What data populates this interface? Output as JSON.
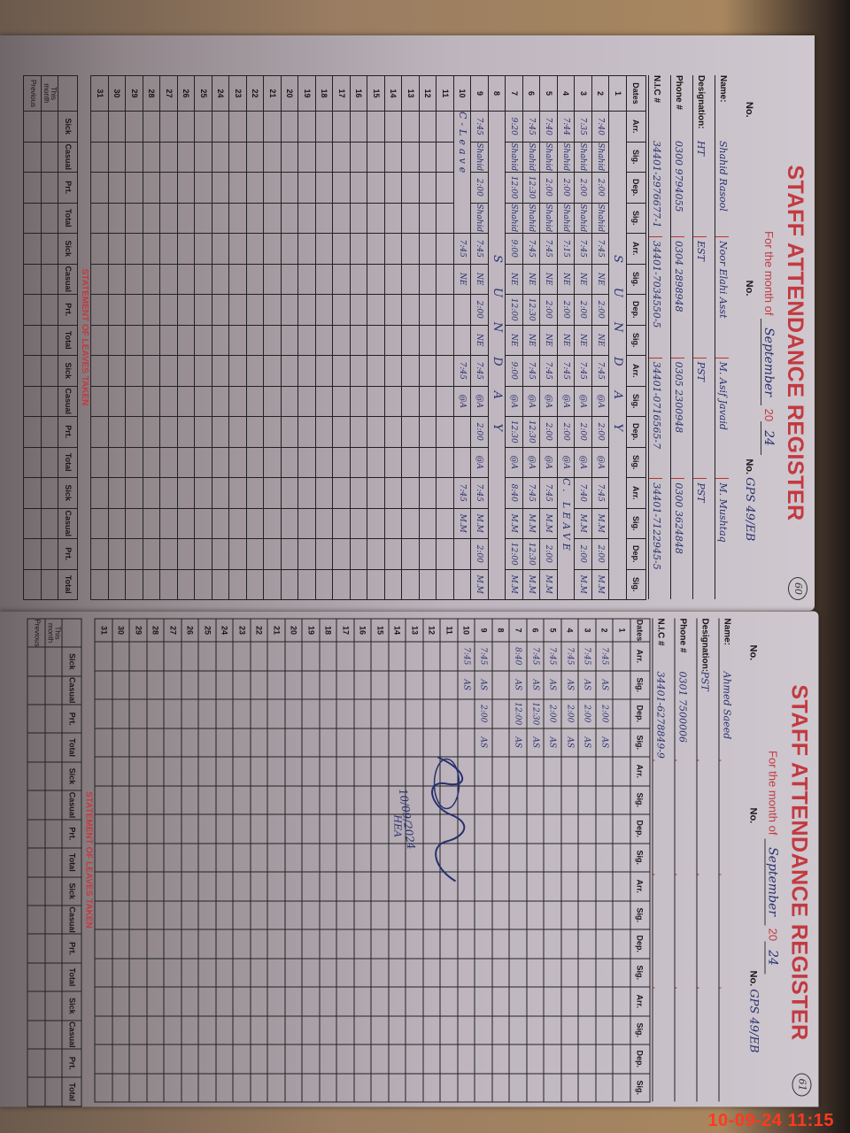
{
  "pages": [
    {
      "id": "left",
      "page_number": "60",
      "title": "STAFF ATTENDANCE REGISTER",
      "month_label": "For the month of",
      "month": "September",
      "year_label": "20",
      "year": "24",
      "no_label": "No.",
      "no_values": [
        "",
        "",
        "GPS 49/EB"
      ],
      "field_labels": {
        "name": "Name:",
        "designation": "Designation:",
        "phone": "Phone #",
        "nic": "N.I.C #"
      },
      "staff": [
        {
          "name": "Shahid Rasool",
          "designation": "HT",
          "phone": "0300 9794055",
          "nic": "34401-2976677-1"
        },
        {
          "name": "Noor Elahi Asst",
          "designation": "EST",
          "phone": "0304 2898948",
          "nic": "34401-7034550-5"
        },
        {
          "name": "M. Asif Javaid",
          "designation": "PST",
          "phone": "0305 2300948",
          "nic": "34401-0716565-7"
        },
        {
          "name": "M. Mushtaq",
          "designation": "PST",
          "phone": "0300 3624848",
          "nic": "34401-7122945-5"
        }
      ],
      "col_headers": {
        "dates": "Dates",
        "sub": [
          "Arr.",
          "Sig.",
          "Dep.",
          "Sig."
        ]
      },
      "rows": [
        {
          "date": "1",
          "span": "SUNDAY"
        },
        {
          "date": "2",
          "cells": [
            "7:40",
            "Shahid",
            "2:00",
            "Shahid",
            "7:45",
            "NE",
            "2:00",
            "NE",
            "7:45",
            "@A",
            "2:00",
            "@A",
            "7:45",
            "M.M",
            "2:00",
            "M.M"
          ]
        },
        {
          "date": "3",
          "cells": [
            "7:35",
            "Shahid",
            "2:00",
            "Shahid",
            "7:45",
            "NE",
            "2:00",
            "NE",
            "7:45",
            "@A",
            "2:00",
            "@A",
            "7:40",
            "M.M",
            "2:00",
            "M.M"
          ]
        },
        {
          "date": "4",
          "cells": [
            "7:44",
            "Shahid",
            "2:00",
            "Shahid",
            "7:15",
            "NE",
            "2:00",
            "NE",
            "7:45",
            "@A",
            "2:00",
            "@A",
            "C. LEAVE",
            "",
            "",
            ""
          ]
        },
        {
          "date": "5",
          "cells": [
            "7:40",
            "Shahid",
            "2:00",
            "Shahid",
            "7:45",
            "NE",
            "2:00",
            "NE",
            "7:45",
            "@A",
            "2:00",
            "@A",
            "7:45",
            "M.M",
            "2:00",
            "M.M"
          ]
        },
        {
          "date": "6",
          "cells": [
            "7:45",
            "Shahid",
            "12:30",
            "Shahid",
            "7:45",
            "NE",
            "12:30",
            "NE",
            "7:45",
            "@A",
            "12:30",
            "@A",
            "7:45",
            "M.M",
            "12:30",
            "M.M"
          ]
        },
        {
          "date": "7",
          "cells": [
            "9:20",
            "Shahid",
            "12:00",
            "Shahid",
            "9:00",
            "NE",
            "12:00",
            "NE",
            "9:00",
            "@A",
            "12:30",
            "@A",
            "8:40",
            "M.M",
            "12:00",
            "M.M"
          ]
        },
        {
          "date": "8",
          "span": "SUNDAY"
        },
        {
          "date": "9",
          "cells": [
            "7:45",
            "Shahid",
            "2:00",
            "Shahid",
            "7:45",
            "NE",
            "2:00",
            "NE",
            "7:45",
            "@A",
            "2:00",
            "@A",
            "7:45",
            "M.M",
            "2:00",
            "M.M"
          ]
        },
        {
          "date": "10",
          "cells": [
            "C-Leave",
            "",
            "",
            "",
            "7:45",
            "NE",
            "",
            "",
            "7:45",
            "@A",
            "",
            "",
            "7:45",
            "M.M",
            "",
            ""
          ]
        },
        {
          "date": "11"
        },
        {
          "date": "12"
        },
        {
          "date": "13"
        },
        {
          "date": "14"
        },
        {
          "date": "15"
        },
        {
          "date": "16"
        },
        {
          "date": "17"
        },
        {
          "date": "18"
        },
        {
          "date": "19"
        },
        {
          "date": "20"
        },
        {
          "date": "21"
        },
        {
          "date": "22"
        },
        {
          "date": "23"
        },
        {
          "date": "24"
        },
        {
          "date": "25"
        },
        {
          "date": "26"
        },
        {
          "date": "27"
        },
        {
          "date": "28"
        },
        {
          "date": "29"
        },
        {
          "date": "30"
        },
        {
          "date": "31"
        }
      ],
      "leaves": {
        "title": "STATEMENT OF LEAVES TAKEN",
        "sub": [
          "Sick",
          "Casual",
          "Prt.",
          "Total"
        ],
        "rows": [
          "This month",
          "Previous"
        ]
      }
    },
    {
      "id": "right",
      "page_number": "61",
      "title": "STAFF ATTENDANCE REGISTER",
      "month_label": "For the month of",
      "month": "September",
      "year_label": "20",
      "year": "24",
      "no_label": "No.",
      "no_values": [
        "",
        "",
        "GPS 49/EB"
      ],
      "field_labels": {
        "name": "Name:",
        "designation": "Designation:",
        "phone": "Phone #",
        "nic": "N.I.C #"
      },
      "staff": [
        {
          "name": "Ahmed Saeed",
          "designation": "PST",
          "phone": "0301 7500006",
          "nic": "34401-6278849-9"
        },
        {
          "name": "",
          "designation": "",
          "phone": "",
          "nic": ""
        },
        {
          "name": "",
          "designation": "",
          "phone": "",
          "nic": ""
        },
        {
          "name": "",
          "designation": "",
          "phone": "",
          "nic": ""
        }
      ],
      "col_headers": {
        "dates": "Dates",
        "sub": [
          "Arr.",
          "Sig.",
          "Dep.",
          "Sig."
        ]
      },
      "rows": [
        {
          "date": "1"
        },
        {
          "date": "2",
          "cells": [
            "7:45",
            "AS",
            "2:00",
            "AS"
          ]
        },
        {
          "date": "3",
          "cells": [
            "7:45",
            "AS",
            "2:00",
            "AS"
          ]
        },
        {
          "date": "4",
          "cells": [
            "7:45",
            "AS",
            "2:00",
            "AS"
          ]
        },
        {
          "date": "5",
          "cells": [
            "7:45",
            "AS",
            "2:00",
            "AS"
          ]
        },
        {
          "date": "6",
          "cells": [
            "7:45",
            "AS",
            "12:30",
            "AS"
          ]
        },
        {
          "date": "7",
          "cells": [
            "8:40",
            "AS",
            "12:00",
            "AS"
          ]
        },
        {
          "date": "8"
        },
        {
          "date": "9",
          "cells": [
            "7:45",
            "AS",
            "2:00",
            "AS"
          ]
        },
        {
          "date": "10",
          "cells": [
            "7:45",
            "AS"
          ]
        },
        {
          "date": "11"
        },
        {
          "date": "12"
        },
        {
          "date": "13"
        },
        {
          "date": "14"
        },
        {
          "date": "15"
        },
        {
          "date": "16"
        },
        {
          "date": "17"
        },
        {
          "date": "18"
        },
        {
          "date": "19"
        },
        {
          "date": "20"
        },
        {
          "date": "21"
        },
        {
          "date": "22"
        },
        {
          "date": "23"
        },
        {
          "date": "24"
        },
        {
          "date": "25"
        },
        {
          "date": "26"
        },
        {
          "date": "27"
        },
        {
          "date": "28"
        },
        {
          "date": "29"
        },
        {
          "date": "30"
        },
        {
          "date": "31"
        }
      ],
      "leaves": {
        "title": "STATEMENT OF LEAVES TAKEN",
        "sub": [
          "Sick",
          "Casual",
          "Prt.",
          "Total"
        ],
        "rows": [
          "This month",
          "Previous"
        ]
      },
      "endorsement": {
        "date": "10/09/2024",
        "initials": "HEA"
      }
    }
  ],
  "camera_timestamp": "10-09-24  11:15",
  "colors": {
    "print_red": "#c23a40",
    "ink_blue": "#27306e",
    "timestamp": "#ff3a1e"
  }
}
